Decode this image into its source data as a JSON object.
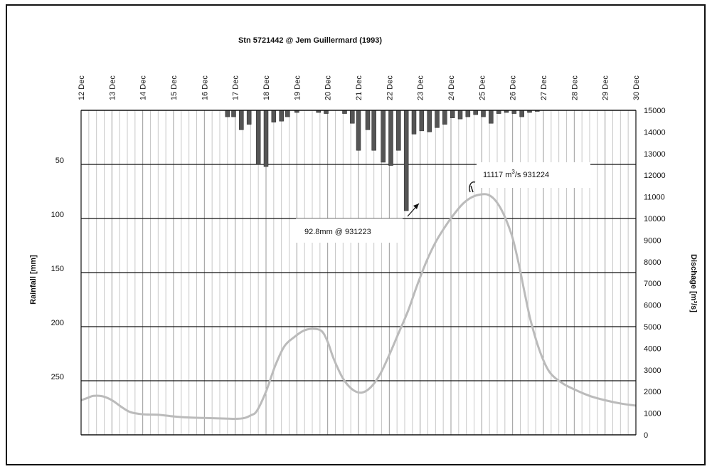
{
  "chart_data": {
    "type": "bar+line",
    "title": "Stn 5721442 @ Jem Guillermard (1993)",
    "x_tick_labels": [
      "12 Dec",
      "13 Dec",
      "14 Dec",
      "15 Dec",
      "16 Dec",
      "17 Dec",
      "18 Dec",
      "19 Dec",
      "20 Dec",
      "21 Dec",
      "22 Dec",
      "23 Dec",
      "24 Dec",
      "25 Dec",
      "26 Dec",
      "27 Dec",
      "28 Dec",
      "29 Dec",
      "30 Dec"
    ],
    "x_range_days": [
      12,
      30
    ],
    "left_axis": {
      "label": "Rainfall [mm]",
      "ticks": [
        50,
        100,
        150,
        200,
        250
      ],
      "range": [
        0,
        300
      ],
      "inverted": true
    },
    "right_axis": {
      "label": "Dischage [m³/s]",
      "ticks": [
        0,
        1000,
        2000,
        3000,
        4000,
        5000,
        6000,
        7000,
        8000,
        9000,
        10000,
        11000,
        12000,
        13000,
        14000,
        15000
      ],
      "range": [
        0,
        15000
      ]
    },
    "gridlines": {
      "horizontal_major": [
        50,
        100,
        150,
        200,
        250
      ],
      "vertical_minor_count_per_day": 4
    },
    "rainfall_series": {
      "name": "Rainfall",
      "color": "#555555",
      "t": [
        16.75,
        16.95,
        17.2,
        17.45,
        17.75,
        18.0,
        18.25,
        18.5,
        18.7,
        19.0,
        19.7,
        19.95,
        20.55,
        20.8,
        21.0,
        21.3,
        21.5,
        21.8,
        22.05,
        22.3,
        22.55,
        22.8,
        23.05,
        23.3,
        23.55,
        23.8,
        24.05,
        24.3,
        24.55,
        24.8,
        25.05,
        25.3,
        25.55,
        25.8,
        26.05,
        26.3,
        26.55,
        26.8
      ],
      "mm": [
        6,
        6,
        18,
        13,
        50,
        52,
        11,
        10,
        6,
        2,
        2,
        3,
        3,
        12,
        37,
        18,
        37,
        48,
        51,
        37,
        92.8,
        22,
        19,
        20,
        16,
        13,
        7,
        8,
        6,
        4,
        6,
        12,
        3,
        2,
        3,
        6,
        2,
        1
      ]
    },
    "discharge_series": {
      "name": "Discharge",
      "color": "#bbbbbb",
      "t": [
        12.0,
        12.2,
        12.4,
        12.7,
        13.0,
        13.3,
        13.6,
        14.0,
        14.5,
        15.0,
        15.5,
        16.0,
        16.5,
        17.0,
        17.3,
        17.5,
        17.7,
        18.0,
        18.3,
        18.6,
        18.9,
        19.2,
        19.5,
        19.8,
        20.0,
        20.2,
        20.5,
        20.8,
        21.1,
        21.4,
        21.7,
        22.0,
        22.3,
        22.6,
        22.9,
        23.2,
        23.5,
        23.8,
        24.1,
        24.4,
        24.7,
        25.0,
        25.2,
        25.4,
        25.6,
        25.8,
        26.0,
        26.2,
        26.4,
        26.6,
        26.9,
        27.2,
        27.6,
        28.0,
        28.5,
        29.0,
        29.5,
        30.0
      ],
      "m3s": [
        1600,
        1700,
        1800,
        1780,
        1600,
        1300,
        1050,
        950,
        930,
        850,
        800,
        780,
        760,
        740,
        780,
        900,
        1100,
        2000,
        3200,
        4100,
        4500,
        4800,
        4900,
        4800,
        4300,
        3500,
        2600,
        2100,
        1950,
        2200,
        2800,
        3700,
        4700,
        5700,
        6900,
        8000,
        8900,
        9600,
        10200,
        10700,
        11000,
        11117,
        11100,
        10900,
        10500,
        9900,
        9100,
        7900,
        6500,
        5200,
        3800,
        2900,
        2400,
        2100,
        1800,
        1600,
        1450,
        1350
      ]
    },
    "annotations": [
      {
        "text": "92.8mm @ 931223",
        "points_to_day": 23.0,
        "points_to_rain_mm": 78
      },
      {
        "text_prefix": "11117 m",
        "sup": "3",
        "text_suffix": "/s 931224",
        "points_to_day": 25.0,
        "points_to_discharge": 11117
      }
    ]
  }
}
